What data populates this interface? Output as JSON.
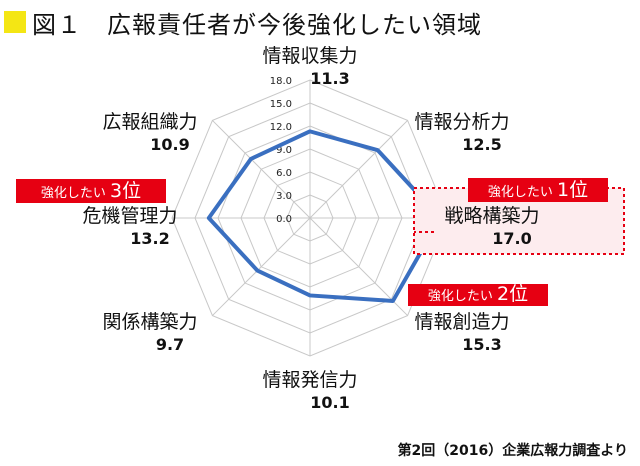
{
  "title": "図１　広報責任者が今後強化したい領域",
  "source": "第2回（2016）企業広報力調査より",
  "chart_data": {
    "type": "radar",
    "axes": [
      "情報収集力",
      "情報分析力",
      "戦略構築力",
      "情報創造力",
      "情報発信力",
      "関係構築力",
      "危機管理力",
      "広報組織力"
    ],
    "values": [
      11.3,
      12.5,
      17.0,
      15.3,
      10.1,
      9.7,
      13.2,
      10.9
    ],
    "value_labels": [
      "11.3",
      "12.5",
      "17.0",
      "15.3",
      "10.1",
      "9.7",
      "13.2",
      "10.9"
    ],
    "rlim": [
      0,
      18
    ],
    "ticks": [
      "0.0",
      "3.0",
      "6.0",
      "9.0",
      "12.0",
      "15.0",
      "18.0"
    ],
    "line_color": "#3a6fc0",
    "grid": true,
    "callouts": [
      {
        "prefix": "強化したい",
        "rank": "1位",
        "axis": "戦略構築力"
      },
      {
        "prefix": "強化したい",
        "rank": "2位",
        "axis": "情報創造力"
      },
      {
        "prefix": "強化したい",
        "rank": "3位",
        "axis": "危機管理力"
      }
    ],
    "callout_color": "#e60012"
  }
}
